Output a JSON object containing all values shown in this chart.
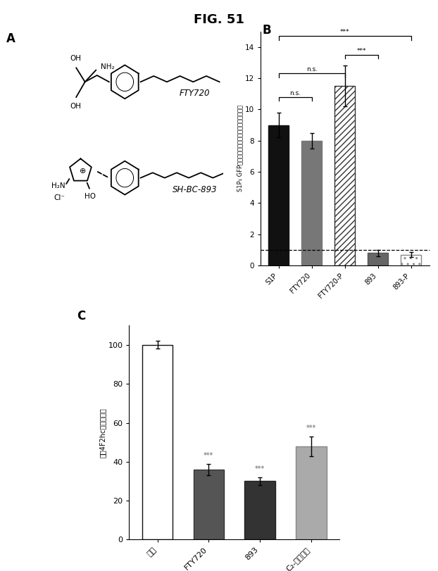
{
  "title": "FIG. 51",
  "panel_B": {
    "categories": [
      "S1P",
      "FTY720",
      "FTY720-P",
      "893",
      "893-P"
    ],
    "values": [
      9.0,
      8.0,
      11.5,
      0.8,
      0.7
    ],
    "errors": [
      0.8,
      0.5,
      1.3,
      0.2,
      0.15
    ],
    "bar_colors": [
      "#111111",
      "#777777",
      "white",
      "#666666",
      "white"
    ],
    "bar_hatches": [
      "",
      "",
      "////",
      "",
      ".."
    ],
    "bar_edgecolors": [
      "#111111",
      "#777777",
      "#333333",
      "#555555",
      "#888888"
    ],
    "ylabel": "S1P₁ GFP受容体活性（対照に対する倍数増加）",
    "ylim": [
      0,
      15
    ],
    "yticks": [
      0,
      2,
      4,
      6,
      8,
      10,
      12,
      14
    ],
    "dashed_line_y": 1.0,
    "panel_label": "B"
  },
  "panel_C": {
    "categories": [
      "対照",
      "FTY720",
      "893",
      "C₂-セラミド"
    ],
    "values": [
      100,
      36,
      30,
      48
    ],
    "errors": [
      2,
      3,
      2,
      5
    ],
    "bar_colors": [
      "white",
      "#555555",
      "#333333",
      "#aaaaaa"
    ],
    "bar_hatches": [
      "",
      "",
      "",
      ""
    ],
    "bar_edgecolors": [
      "#111111",
      "#333333",
      "#222222",
      "#888888"
    ],
    "ylabel": "表面4F2hc（対照％）",
    "ylim": [
      0,
      110
    ],
    "yticks": [
      0,
      20,
      40,
      60,
      80,
      100
    ],
    "panel_label": "C",
    "sig_labels": [
      "",
      "***",
      "***",
      "***"
    ]
  }
}
